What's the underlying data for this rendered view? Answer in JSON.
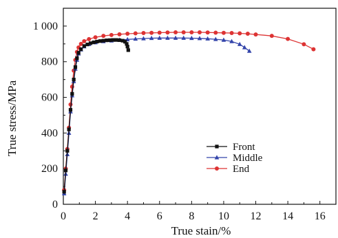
{
  "chart_data": {
    "type": "line",
    "xlabel": "True stain/%",
    "ylabel": "True stress/MPa",
    "xlim": [
      0,
      17
    ],
    "ylim": [
      0,
      1100
    ],
    "xticks": [
      0,
      2,
      4,
      6,
      8,
      10,
      12,
      14,
      16
    ],
    "yticks": [
      0,
      200,
      400,
      600,
      800,
      1000
    ],
    "xtick_labels": [
      "0",
      "2",
      "4",
      "6",
      "8",
      "10",
      "12",
      "14",
      "16"
    ],
    "ytick_labels": [
      "0",
      "200",
      "400",
      "600",
      "800",
      "1 000"
    ],
    "grid": false,
    "legend_position": "center-right",
    "series": [
      {
        "name": "Front",
        "color": "#111111",
        "marker": "square",
        "x": [
          0.05,
          0.15,
          0.25,
          0.35,
          0.45,
          0.55,
          0.65,
          0.75,
          0.85,
          0.95,
          1.1,
          1.3,
          1.5,
          1.7,
          1.9,
          2.1,
          2.3,
          2.5,
          2.7,
          2.9,
          3.1,
          3.3,
          3.5,
          3.7,
          3.85,
          3.95,
          4.0,
          4.05
        ],
        "y": [
          70,
          190,
          300,
          420,
          530,
          620,
          700,
          770,
          820,
          850,
          870,
          888,
          897,
          904,
          909,
          913,
          916,
          918,
          920,
          921,
          922,
          922,
          921,
          918,
          912,
          900,
          885,
          865
        ]
      },
      {
        "name": "Middle",
        "color": "#3344aa",
        "marker": "triangle",
        "x": [
          0.05,
          0.15,
          0.25,
          0.35,
          0.45,
          0.55,
          0.65,
          0.75,
          0.85,
          0.95,
          1.1,
          1.3,
          1.6,
          2.0,
          2.5,
          3.0,
          3.5,
          4.0,
          4.5,
          5.0,
          5.5,
          6.0,
          6.5,
          7.0,
          7.5,
          8.0,
          8.5,
          9.0,
          9.5,
          10.0,
          10.5,
          11.0,
          11.3,
          11.6
        ],
        "y": [
          60,
          170,
          280,
          400,
          520,
          610,
          690,
          760,
          810,
          845,
          868,
          885,
          898,
          908,
          914,
          918,
          922,
          925,
          928,
          930,
          932,
          933,
          933,
          933,
          933,
          932,
          931,
          929,
          926,
          922,
          914,
          898,
          880,
          860
        ]
      },
      {
        "name": "End",
        "color": "#dd3333",
        "marker": "circle",
        "x": [
          0.05,
          0.15,
          0.25,
          0.35,
          0.45,
          0.55,
          0.65,
          0.75,
          0.85,
          0.95,
          1.1,
          1.3,
          1.6,
          2.0,
          2.5,
          3.0,
          3.5,
          4.0,
          4.5,
          5.0,
          5.5,
          6.0,
          6.5,
          7.0,
          7.5,
          8.0,
          8.5,
          9.0,
          9.5,
          10.0,
          10.5,
          11.0,
          11.5,
          12.0,
          13.0,
          14.0,
          15.0,
          15.6
        ],
        "y": [
          80,
          200,
          310,
          430,
          560,
          660,
          750,
          810,
          855,
          880,
          900,
          915,
          927,
          937,
          945,
          950,
          954,
          957,
          959,
          961,
          962,
          963,
          964,
          965,
          965,
          965,
          965,
          964,
          963,
          962,
          961,
          959,
          957,
          953,
          945,
          928,
          898,
          870
        ]
      }
    ]
  }
}
